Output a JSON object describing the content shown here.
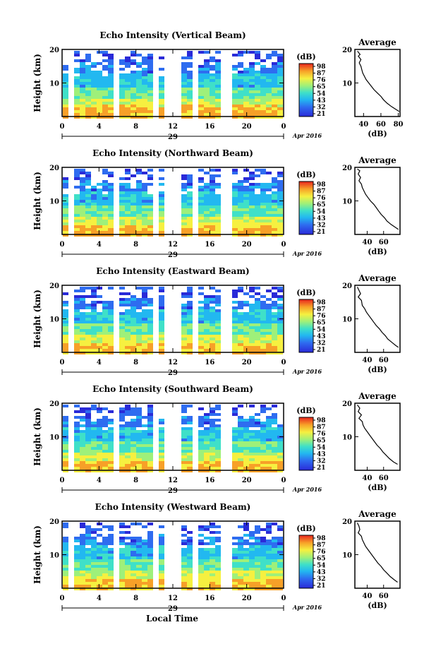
{
  "chart_data": [
    {
      "type": "heatmap",
      "title": "Echo Intensity (Vertical Beam)",
      "ylabel": "Height (km)",
      "y_ticks": [
        "20",
        "10"
      ],
      "x_ticks": [
        "0",
        "4",
        "8",
        "12",
        "16",
        "20",
        "0"
      ],
      "date_label": "29",
      "month_label": "Apr 2016",
      "colorbar": {
        "unit": "(dB)",
        "ticks": [
          "98",
          "87",
          "76",
          "65",
          "54",
          "43",
          "32",
          "21"
        ]
      },
      "avg_profile": {
        "title": "Average",
        "xlabel": "(dB)",
        "x_ticks": [
          "40",
          "60",
          "80"
        ],
        "xlim": [
          30,
          82
        ],
        "points": [
          [
            33,
            19.5
          ],
          [
            36,
            18.5
          ],
          [
            34,
            18
          ],
          [
            37,
            17
          ],
          [
            35,
            16
          ],
          [
            37,
            15
          ],
          [
            38,
            14
          ],
          [
            39,
            13
          ],
          [
            41,
            12
          ],
          [
            43,
            11
          ],
          [
            46,
            10
          ],
          [
            49,
            9
          ],
          [
            52,
            8
          ],
          [
            56,
            7
          ],
          [
            60,
            6
          ],
          [
            63,
            5
          ],
          [
            67,
            4
          ],
          [
            72,
            3
          ],
          [
            78,
            2
          ],
          [
            81,
            1.5
          ]
        ]
      }
    },
    {
      "type": "heatmap",
      "title": "Echo Intensity (Northward Beam)",
      "ylabel": "Height (km)",
      "y_ticks": [
        "20",
        "10"
      ],
      "x_ticks": [
        "0",
        "4",
        "8",
        "12",
        "16",
        "20",
        "0"
      ],
      "date_label": "29",
      "month_label": "Apr 2016",
      "colorbar": {
        "unit": "(dB)",
        "ticks": [
          "98",
          "87",
          "76",
          "65",
          "54",
          "43",
          "32",
          "21"
        ]
      },
      "avg_profile": {
        "title": "Average",
        "xlabel": "(dB)",
        "x_ticks": [
          "40",
          "60"
        ],
        "xlim": [
          25,
          80
        ],
        "points": [
          [
            28,
            19.5
          ],
          [
            31,
            19
          ],
          [
            29,
            18
          ],
          [
            32,
            17
          ],
          [
            30,
            16
          ],
          [
            33,
            15
          ],
          [
            34,
            14
          ],
          [
            36,
            13
          ],
          [
            38,
            12
          ],
          [
            41,
            11
          ],
          [
            44,
            10
          ],
          [
            48,
            9
          ],
          [
            51,
            8
          ],
          [
            54,
            7
          ],
          [
            57,
            6
          ],
          [
            61,
            5
          ],
          [
            64,
            4
          ],
          [
            69,
            3
          ],
          [
            75,
            2
          ],
          [
            78,
            1.5
          ]
        ]
      }
    },
    {
      "type": "heatmap",
      "title": "Echo Intensity (Eastward Beam)",
      "ylabel": "Height (km)",
      "y_ticks": [
        "20",
        "10"
      ],
      "x_ticks": [
        "0",
        "4",
        "8",
        "12",
        "16",
        "20",
        "0"
      ],
      "date_label": "29",
      "month_label": "Apr 2016",
      "colorbar": {
        "unit": "(dB)",
        "ticks": [
          "98",
          "87",
          "76",
          "65",
          "54",
          "43",
          "32",
          "21"
        ]
      },
      "avg_profile": {
        "title": "Average",
        "xlabel": "(dB)",
        "x_ticks": [
          "40",
          "60"
        ],
        "xlim": [
          25,
          80
        ],
        "points": [
          [
            28,
            19.5
          ],
          [
            30,
            18.5
          ],
          [
            32,
            17.5
          ],
          [
            29,
            16.5
          ],
          [
            33,
            15.5
          ],
          [
            34,
            14
          ],
          [
            37,
            13
          ],
          [
            39,
            12
          ],
          [
            42,
            11
          ],
          [
            45,
            10
          ],
          [
            48,
            9
          ],
          [
            51,
            8
          ],
          [
            55,
            7
          ],
          [
            58,
            6
          ],
          [
            62,
            5
          ],
          [
            65,
            4
          ],
          [
            70,
            3
          ],
          [
            75,
            2
          ],
          [
            78,
            1.5
          ]
        ]
      }
    },
    {
      "type": "heatmap",
      "title": "Echo Intensity (Southward Beam)",
      "ylabel": "Height (km)",
      "y_ticks": [
        "20",
        "10"
      ],
      "x_ticks": [
        "0",
        "4",
        "8",
        "12",
        "16",
        "20",
        "0"
      ],
      "date_label": "29",
      "month_label": "Apr 2016",
      "colorbar": {
        "unit": "(dB)",
        "ticks": [
          "98",
          "87",
          "76",
          "65",
          "54",
          "43",
          "32",
          "21"
        ]
      },
      "avg_profile": {
        "title": "Average",
        "xlabel": "(dB)",
        "x_ticks": [
          "40",
          "60"
        ],
        "xlim": [
          25,
          80
        ],
        "points": [
          [
            28,
            19.5
          ],
          [
            31,
            18.5
          ],
          [
            29,
            17.5
          ],
          [
            33,
            16.5
          ],
          [
            30,
            15.5
          ],
          [
            34,
            14.5
          ],
          [
            35,
            13.5
          ],
          [
            37,
            12.5
          ],
          [
            40,
            11.5
          ],
          [
            43,
            10.5
          ],
          [
            46,
            9.5
          ],
          [
            49,
            8.5
          ],
          [
            52,
            7.5
          ],
          [
            56,
            6.5
          ],
          [
            59,
            5.5
          ],
          [
            63,
            4.5
          ],
          [
            67,
            3.5
          ],
          [
            72,
            2.5
          ],
          [
            77,
            1.8
          ]
        ]
      }
    },
    {
      "type": "heatmap",
      "title": "Echo Intensity (Westward Beam)",
      "ylabel": "Height (km)",
      "y_ticks": [
        "20",
        "10"
      ],
      "x_ticks": [
        "0",
        "4",
        "8",
        "12",
        "16",
        "20",
        "0"
      ],
      "date_label": "29",
      "month_label": "Apr 2016",
      "colorbar": {
        "unit": "(dB)",
        "ticks": [
          "98",
          "87",
          "76",
          "65",
          "54",
          "43",
          "32",
          "21"
        ]
      },
      "avg_profile": {
        "title": "Average",
        "xlabel": "(dB)",
        "x_ticks": [
          "40",
          "60"
        ],
        "xlim": [
          25,
          80
        ],
        "points": [
          [
            28,
            19.5
          ],
          [
            30,
            18.5
          ],
          [
            31,
            17.5
          ],
          [
            29,
            16.5
          ],
          [
            33,
            15.5
          ],
          [
            34,
            14.5
          ],
          [
            36,
            13.5
          ],
          [
            38,
            12.5
          ],
          [
            41,
            11.5
          ],
          [
            44,
            10.5
          ],
          [
            47,
            9.5
          ],
          [
            50,
            8.5
          ],
          [
            53,
            7.5
          ],
          [
            57,
            6.5
          ],
          [
            60,
            5.5
          ],
          [
            64,
            4.5
          ],
          [
            68,
            3.5
          ],
          [
            73,
            2.5
          ],
          [
            77,
            1.8
          ]
        ]
      }
    }
  ],
  "footer": {
    "xlabel": "Local Time"
  }
}
